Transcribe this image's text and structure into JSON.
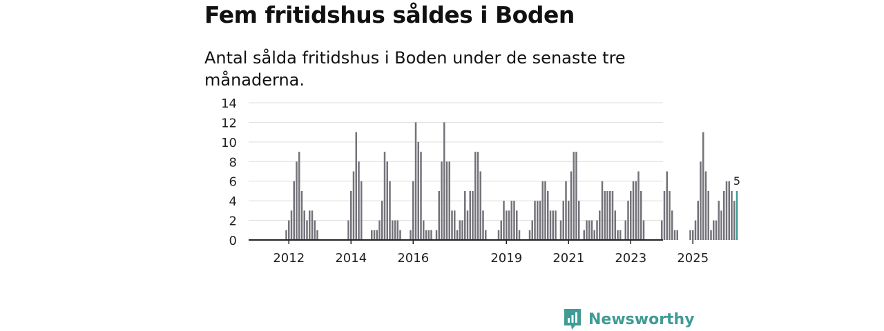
{
  "title": "Fem fritidshus såldes i Boden",
  "subtitle": "Antal sålda fritidshus i Boden under de senaste tre månaderna.",
  "brand": {
    "name": "Newsworthy",
    "icon": "bar-chart-speech-bubble-icon",
    "color": "#3f9b95"
  },
  "chart_data": {
    "type": "bar",
    "title": "Fem fritidshus såldes i Boden",
    "xlabel": "",
    "ylabel": "",
    "ylim": [
      0,
      14
    ],
    "yticks": [
      "0",
      "2",
      "4",
      "6",
      "8",
      "10",
      "12",
      "14"
    ],
    "grid": true,
    "start_month": "2012-01",
    "xtick_labels": [
      {
        "label": "2012",
        "month_index": 7
      },
      {
        "label": "2014",
        "month_index": 31
      },
      {
        "label": "2016",
        "month_index": 55
      },
      {
        "label": "2019",
        "month_index": 91
      },
      {
        "label": "2021",
        "month_index": 115
      },
      {
        "label": "2023",
        "month_index": 139
      },
      {
        "label": "2025",
        "month_index": 163
      }
    ],
    "colors": {
      "bars": "#74737a",
      "highlight": "#3f9b95",
      "grid": "#dddddd",
      "axis": "#222222"
    },
    "highlight_label": "5",
    "values": [
      0,
      0,
      0,
      0,
      0,
      0,
      1,
      2,
      3,
      6,
      8,
      9,
      5,
      3,
      2,
      3,
      3,
      2,
      1,
      0,
      0,
      0,
      0,
      0,
      0,
      0,
      0,
      0,
      0,
      0,
      2,
      5,
      7,
      11,
      8,
      6,
      0,
      0,
      0,
      1,
      1,
      1,
      2,
      4,
      9,
      8,
      6,
      2,
      2,
      2,
      1,
      0,
      0,
      0,
      1,
      6,
      12,
      10,
      9,
      2,
      1,
      1,
      1,
      0,
      1,
      5,
      8,
      12,
      8,
      8,
      3,
      3,
      1,
      2,
      2,
      5,
      3,
      5,
      5,
      9,
      9,
      7,
      3,
      1,
      0,
      0,
      0,
      0,
      1,
      2,
      4,
      3,
      3,
      4,
      4,
      3,
      1,
      0,
      0,
      0,
      1,
      2,
      4,
      4,
      4,
      6,
      6,
      5,
      3,
      3,
      3,
      0,
      2,
      4,
      6,
      4,
      7,
      9,
      9,
      4,
      0,
      1,
      2,
      2,
      2,
      1,
      2,
      3,
      6,
      5,
      5,
      5,
      5,
      3,
      1,
      1,
      0,
      2,
      4,
      5,
      6,
      6,
      7,
      5,
      2,
      0,
      0,
      0,
      0,
      0,
      0,
      2,
      5,
      7,
      5,
      3,
      1,
      1,
      0,
      0,
      0,
      0,
      1,
      1,
      2,
      4,
      8,
      11,
      7,
      5,
      1,
      2,
      2,
      4,
      3,
      5,
      6,
      6,
      5,
      4,
      5
    ]
  }
}
